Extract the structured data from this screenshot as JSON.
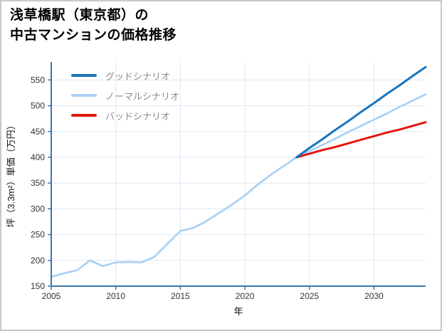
{
  "header": {
    "title_line1": "浅草橋駅（東京都）の",
    "title_line2": "中古マンションの価格推移"
  },
  "legend": {
    "items": [
      {
        "label": "グッドシナリオ",
        "color": "#1a75bc"
      },
      {
        "label": "ノーマルシナリオ",
        "color": "#a9cff2"
      },
      {
        "label": "バッドシナリオ",
        "color": "#e3170f"
      }
    ]
  },
  "chart_data": {
    "type": "line",
    "title": "浅草橋駅（東京都）の中古マンションの価格推移",
    "xlabel": "年",
    "ylabel": "坪（3.3m²）単価（万円）",
    "xlim": [
      2005,
      2034
    ],
    "ylim": [
      150,
      585
    ],
    "xticks": [
      2005,
      2010,
      2015,
      2020,
      2025,
      2030
    ],
    "yticks": [
      150,
      200,
      250,
      300,
      350,
      400,
      450,
      500,
      550
    ],
    "grid": true,
    "legend_position": "top-left",
    "series": [
      {
        "name": "ノーマルシナリオ",
        "color": "#a9cff2",
        "width": 2.6,
        "x": [
          2005,
          2006,
          2007,
          2008,
          2009,
          2010,
          2011,
          2012,
          2013,
          2014,
          2015,
          2016,
          2017,
          2018,
          2019,
          2020,
          2021,
          2022,
          2023,
          2024,
          2025,
          2026,
          2027,
          2028,
          2029,
          2030,
          2031,
          2032,
          2033,
          2034
        ],
        "values": [
          168,
          175,
          181,
          200,
          189,
          196,
          197,
          196,
          207,
          232,
          257,
          263,
          276,
          292,
          308,
          326,
          347,
          366,
          383,
          400,
          412,
          424,
          436,
          449,
          461,
          473,
          485,
          498,
          510,
          522
        ]
      },
      {
        "name": "バッドシナリオ",
        "color": "#e3170f",
        "width": 3,
        "x": [
          2024,
          2025,
          2026,
          2027,
          2028,
          2029,
          2030,
          2031,
          2032,
          2033,
          2034
        ],
        "values": [
          400,
          407,
          414,
          420,
          427,
          434,
          441,
          448,
          454,
          461,
          468
        ]
      },
      {
        "name": "グッドシナリオ",
        "color": "#1a75bc",
        "width": 3,
        "x": [
          2024,
          2025,
          2026,
          2027,
          2028,
          2029,
          2030,
          2031,
          2032,
          2033,
          2034
        ],
        "values": [
          400,
          418,
          435,
          453,
          470,
          488,
          505,
          523,
          540,
          558,
          575
        ]
      }
    ]
  }
}
